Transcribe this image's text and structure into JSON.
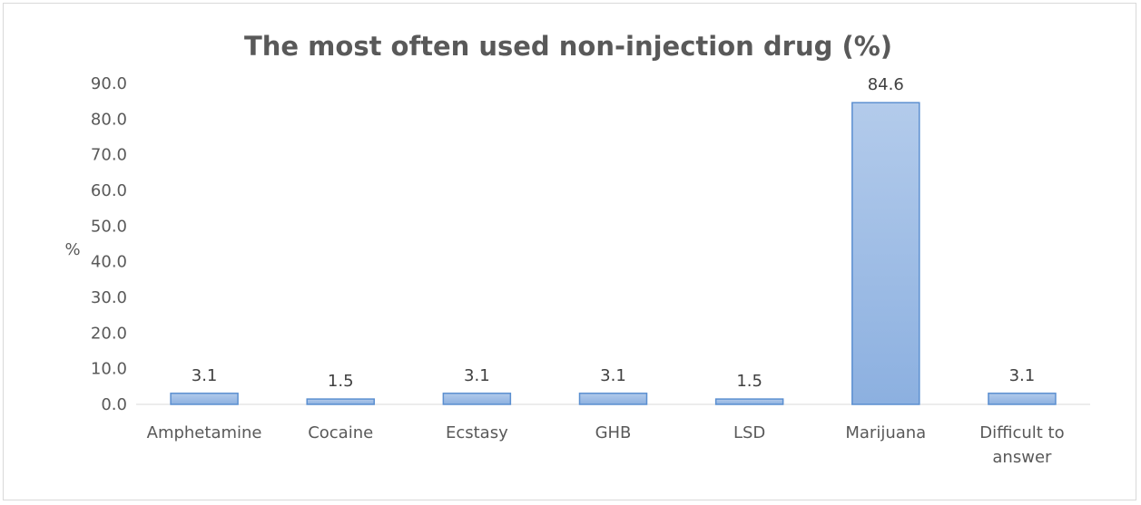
{
  "chart_data": {
    "type": "bar",
    "title": "The most often used non-injection drug (%)",
    "xlabel": "",
    "ylabel": "%",
    "categories": [
      "Amphetamine",
      "Cocaine",
      "Ecstasy",
      "GHB",
      "LSD",
      "Marijuana",
      "Difficult to answer"
    ],
    "values": [
      3.1,
      1.5,
      3.1,
      3.1,
      1.5,
      84.6,
      3.1
    ],
    "value_labels": [
      "3.1",
      "1.5",
      "3.1",
      "3.1",
      "1.5",
      "84.6",
      "3.1"
    ],
    "ylim": [
      0,
      90
    ],
    "y_ticks": [
      "0.0",
      "10.0",
      "20.0",
      "30.0",
      "40.0",
      "50.0",
      "60.0",
      "70.0",
      "80.0",
      "90.0"
    ],
    "grid": false,
    "legend": "none",
    "colors": {
      "bar_fill_top": "#b3cbeb",
      "bar_fill_bottom": "#8cb0e0",
      "bar_stroke": "#5b8fd0",
      "axis": "#d9d9d9",
      "text": "#595959"
    }
  }
}
